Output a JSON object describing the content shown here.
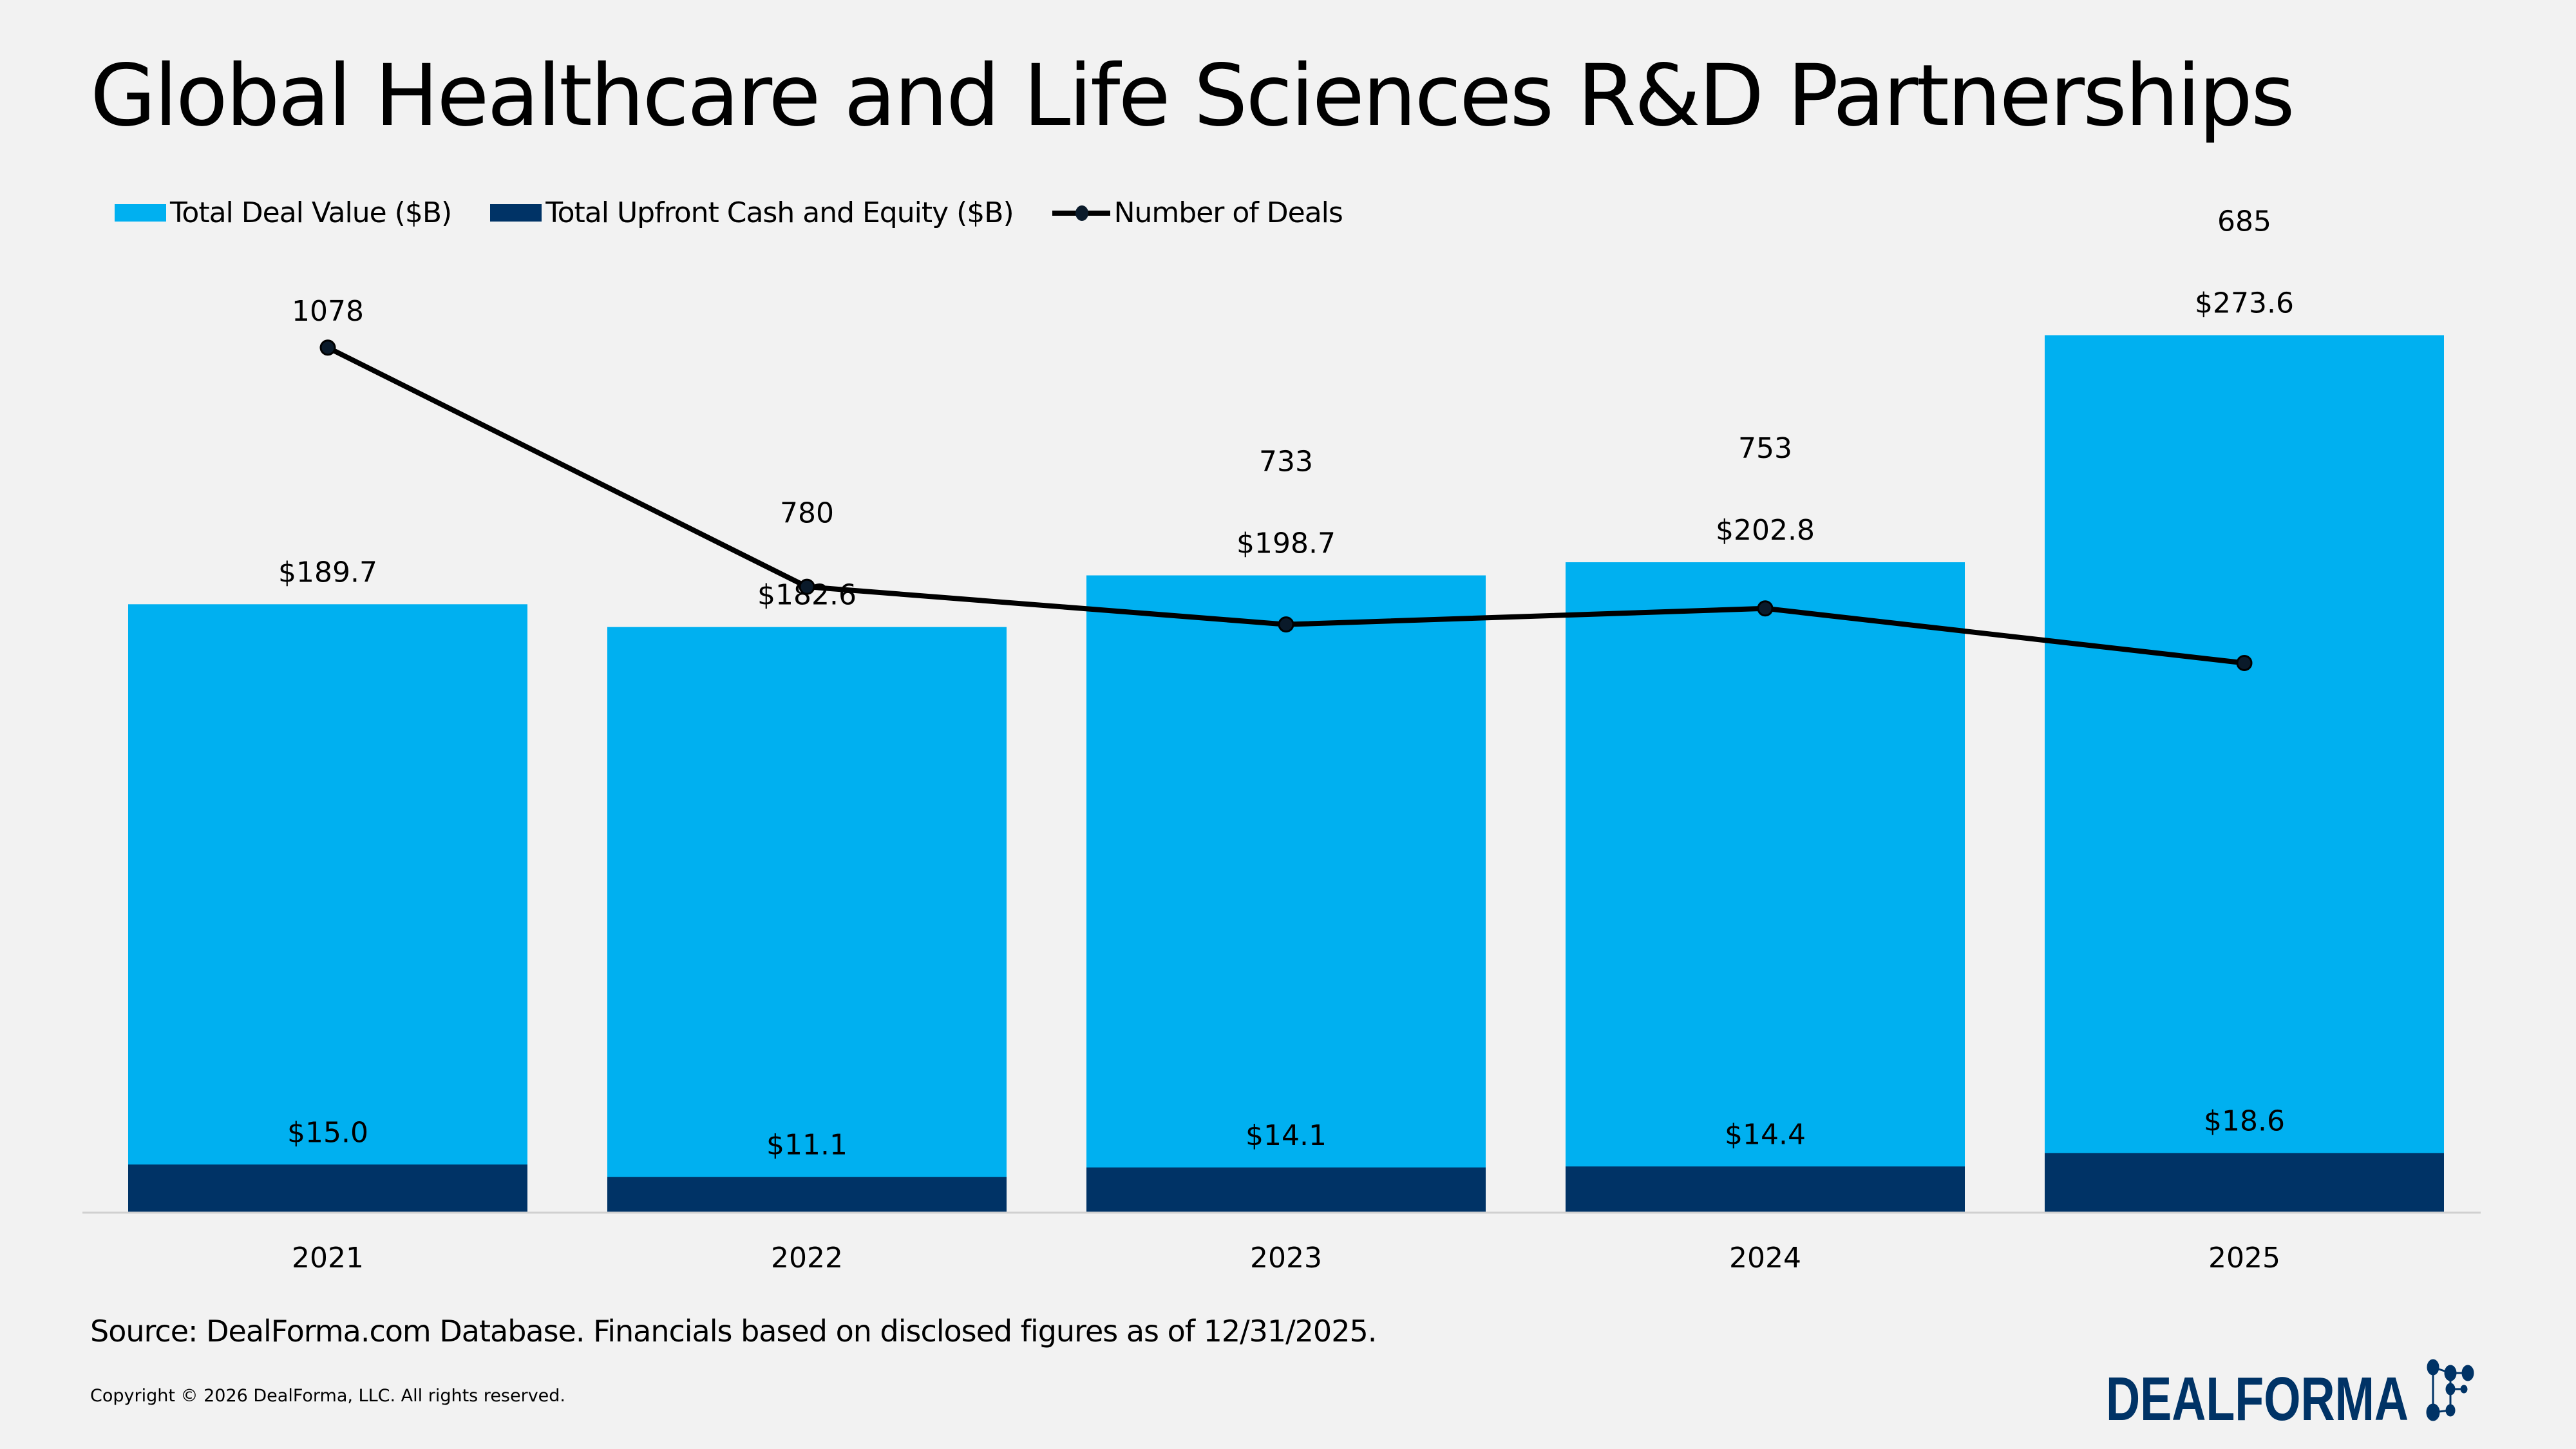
{
  "title": "Global Healthcare and Life Sciences R&D Partnerships",
  "source": "Source: DealForma.com Database. Financials based on disclosed figures as of 12/31/2025.",
  "copyright": "Copyright © 2026 DealForma, LLC. All rights reserved.",
  "logo_text": "DEALFORMA",
  "colors": {
    "total": "#00b0f0",
    "upfront": "#003366",
    "line": "#000000",
    "background": "#f2f2f2"
  },
  "chart_data": {
    "type": "bar",
    "title": "Global Healthcare and Life Sciences R&D Partnerships",
    "categories": [
      "2021",
      "2022",
      "2023",
      "2024",
      "2025"
    ],
    "series": [
      {
        "name": "Total Deal Value ($B)",
        "type": "bar",
        "values": [
          189.7,
          182.6,
          198.7,
          202.8,
          273.6
        ],
        "labels": [
          "$189.7",
          "$182.6",
          "$198.7",
          "$202.8",
          "$273.6"
        ]
      },
      {
        "name": "Total Upfront Cash and Equity ($B)",
        "type": "bar",
        "values": [
          15.0,
          11.1,
          14.1,
          14.4,
          18.6
        ],
        "labels": [
          "$15.0",
          "$11.1",
          "$14.1",
          "$14.4",
          "$18.6"
        ]
      },
      {
        "name": "Number of Deals",
        "type": "line",
        "values": [
          1078,
          780,
          733,
          753,
          685
        ],
        "labels": [
          "1078",
          "780",
          "733",
          "753",
          "685"
        ]
      }
    ],
    "ylim": [
      0,
      300
    ],
    "y2lim": [
      0,
      1500
    ],
    "legend": "top-left",
    "grid": false
  }
}
